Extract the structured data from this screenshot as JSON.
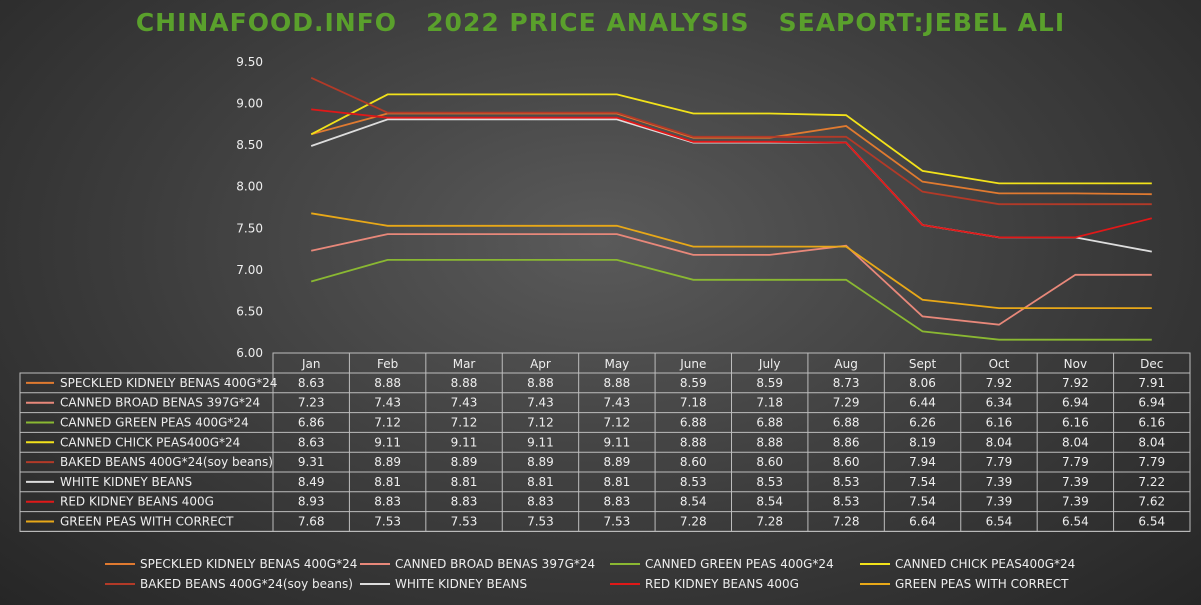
{
  "chart_data": {
    "type": "line",
    "title": "CHINAFOOD.INFO   2022 PRICE ANALYSIS   SEAPORT:JEBEL ALI",
    "categories": [
      "Jan",
      "Feb",
      "Mar",
      "Apr",
      "May",
      "June",
      "July",
      "Aug",
      "Sept",
      "Oct",
      "Nov",
      "Dec"
    ],
    "ylim": [
      6.0,
      9.5
    ],
    "yticks": [
      "6.00",
      "6.50",
      "7.00",
      "7.50",
      "8.00",
      "8.50",
      "9.00",
      "9.50"
    ],
    "legend_position": "bottom",
    "series": [
      {
        "name": "SPECKLED KIDNELY BENAS 400G*24",
        "color": "#e07a30",
        "values": [
          8.63,
          8.88,
          8.88,
          8.88,
          8.88,
          8.59,
          8.59,
          8.73,
          8.06,
          7.92,
          7.92,
          7.91
        ],
        "labels": [
          "8.63",
          "8.88",
          "8.88",
          "8.88",
          "8.88",
          "8.59",
          "8.59",
          "8.73",
          "8.06",
          "7.92",
          "7.92",
          "7.91"
        ]
      },
      {
        "name": "CANNED BROAD BENAS 397G*24",
        "color": "#e8887a",
        "values": [
          7.23,
          7.43,
          7.43,
          7.43,
          7.43,
          7.18,
          7.18,
          7.29,
          6.44,
          6.34,
          6.94,
          6.94
        ],
        "labels": [
          "7.23",
          "7.43",
          "7.43",
          "7.43",
          "7.43",
          "7.18",
          "7.18",
          "7.29",
          "6.44",
          "6.34",
          "6.94",
          "6.94"
        ]
      },
      {
        "name": "CANNED GREEN PEAS 400G*24",
        "color": "#8ab832",
        "values": [
          6.86,
          7.12,
          7.12,
          7.12,
          7.12,
          6.88,
          6.88,
          6.88,
          6.26,
          6.16,
          6.16,
          6.16
        ],
        "labels": [
          "6.86",
          "7.12",
          "7.12",
          "7.12",
          "7.12",
          "6.88",
          "6.88",
          "6.88",
          "6.26",
          "6.16",
          "6.16",
          "6.16"
        ]
      },
      {
        "name": "CANNED CHICK PEAS400G*24",
        "color": "#f2e21a",
        "values": [
          8.63,
          9.11,
          9.11,
          9.11,
          9.11,
          8.88,
          8.88,
          8.86,
          8.19,
          8.04,
          8.04,
          8.04
        ],
        "labels": [
          "8.63",
          "9.11",
          "9.11",
          "9.11",
          "9.11",
          "8.88",
          "8.88",
          "8.86",
          "8.19",
          "8.04",
          "8.04",
          "8.04"
        ]
      },
      {
        "name": "BAKED BEANS 400G*24(soy beans)",
        "color": "#b23a28",
        "values": [
          9.31,
          8.89,
          8.89,
          8.89,
          8.89,
          8.6,
          8.6,
          8.6,
          7.94,
          7.79,
          7.79,
          7.79
        ],
        "labels": [
          "9.31",
          "8.89",
          "8.89",
          "8.89",
          "8.89",
          "8.60",
          "8.60",
          "8.60",
          "7.94",
          "7.79",
          "7.79",
          "7.79"
        ]
      },
      {
        "name": "WHITE KIDNEY BEANS",
        "color": "#dddddd",
        "values": [
          8.49,
          8.81,
          8.81,
          8.81,
          8.81,
          8.53,
          8.53,
          8.53,
          7.54,
          7.39,
          7.39,
          7.22
        ],
        "labels": [
          "8.49",
          "8.81",
          "8.81",
          "8.81",
          "8.81",
          "8.53",
          "8.53",
          "8.53",
          "7.54",
          "7.39",
          "7.39",
          "7.22"
        ]
      },
      {
        "name": "RED KIDNEY BEANS 400G",
        "color": "#e01818",
        "values": [
          8.93,
          8.83,
          8.83,
          8.83,
          8.83,
          8.54,
          8.54,
          8.53,
          7.54,
          7.39,
          7.39,
          7.62
        ],
        "labels": [
          "8.93",
          "8.83",
          "8.83",
          "8.83",
          "8.83",
          "8.54",
          "8.54",
          "8.53",
          "7.54",
          "7.39",
          "7.39",
          "7.62"
        ]
      },
      {
        "name": "GREEN PEAS WITH CORRECT",
        "color": "#e8a818",
        "values": [
          7.68,
          7.53,
          7.53,
          7.53,
          7.53,
          7.28,
          7.28,
          7.28,
          6.64,
          6.54,
          6.54,
          6.54
        ],
        "labels": [
          "7.68",
          "7.53",
          "7.53",
          "7.53",
          "7.53",
          "7.28",
          "7.28",
          "7.28",
          "6.64",
          "6.54",
          "6.54",
          "6.54"
        ]
      }
    ]
  }
}
